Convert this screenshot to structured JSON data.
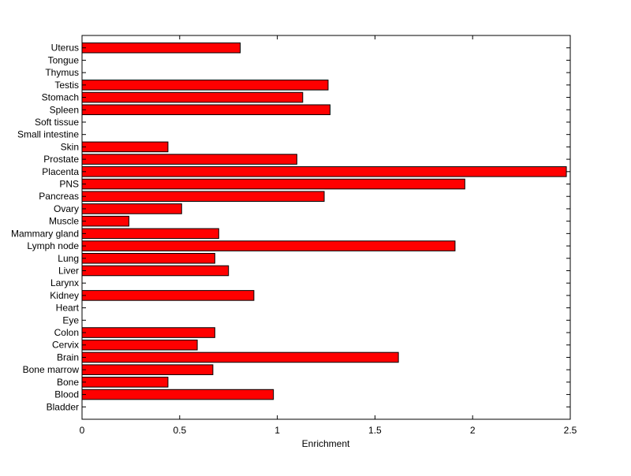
{
  "chart_data": {
    "type": "bar",
    "orientation": "horizontal",
    "title": "",
    "xlabel": "Enrichment",
    "ylabel": "",
    "xlim": [
      0,
      2.5
    ],
    "xticks": [
      0,
      0.5,
      1,
      1.5,
      2,
      2.5
    ],
    "xtick_labels": [
      "0",
      "0.5",
      "1",
      "1.5",
      "2",
      "2.5"
    ],
    "grid": false,
    "bar_color": "#ff0000",
    "edge_color": "#000000",
    "categories": [
      "Bladder",
      "Blood",
      "Bone",
      "Bone marrow",
      "Brain",
      "Cervix",
      "Colon",
      "Eye",
      "Heart",
      "Kidney",
      "Larynx",
      "Liver",
      "Lung",
      "Lymph node",
      "Mammary gland",
      "Muscle",
      "Ovary",
      "Pancreas",
      "PNS",
      "Placenta",
      "Prostate",
      "Skin",
      "Small intestine",
      "Soft tissue",
      "Spleen",
      "Stomach",
      "Testis",
      "Thymus",
      "Tongue",
      "Uterus"
    ],
    "values": [
      0,
      0.98,
      0.44,
      0.67,
      1.62,
      0.59,
      0.68,
      0,
      0,
      0.88,
      0,
      0.75,
      0.68,
      1.91,
      0.7,
      0.24,
      0.51,
      1.24,
      1.96,
      2.48,
      1.1,
      0.44,
      0,
      0,
      1.27,
      1.13,
      1.26,
      0,
      0,
      0.81
    ]
  }
}
